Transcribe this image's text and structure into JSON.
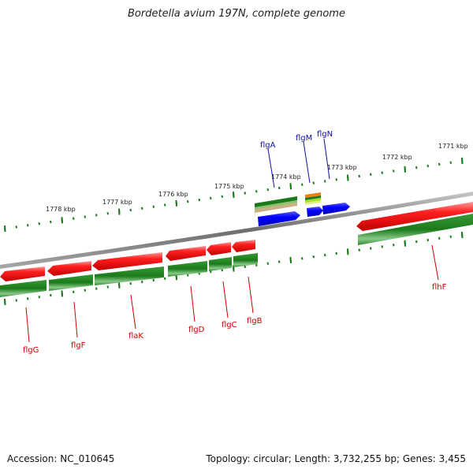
{
  "title": "Bordetella avium 197N, complete genome",
  "footer": {
    "accession": "Accession: NC_010645",
    "topology": "Topology: circular; Length: 3,732,255 bp; Genes: 3,455"
  },
  "scale_labels": [
    "1778 kbp",
    "1777 kbp",
    "1776 kbp",
    "1775 kbp",
    "1774 kbp",
    "1773 kbp",
    "1772 kbp",
    "1771 kbp"
  ],
  "gene_labels": {
    "top": [
      "flgA",
      "flgM",
      "flgN"
    ],
    "bottom": [
      "flgG",
      "flgF",
      "flaK",
      "flgD",
      "flgC",
      "flgB",
      "flhF"
    ]
  },
  "colors": {
    "forward_gene": "#ff0000",
    "cds": "#1a8a1a",
    "blue_gene": "#0000ff",
    "top_label": "#1010a0",
    "bottom_label": "#cc0000",
    "backbone": "#888888",
    "tick": "#1a7a1a"
  }
}
